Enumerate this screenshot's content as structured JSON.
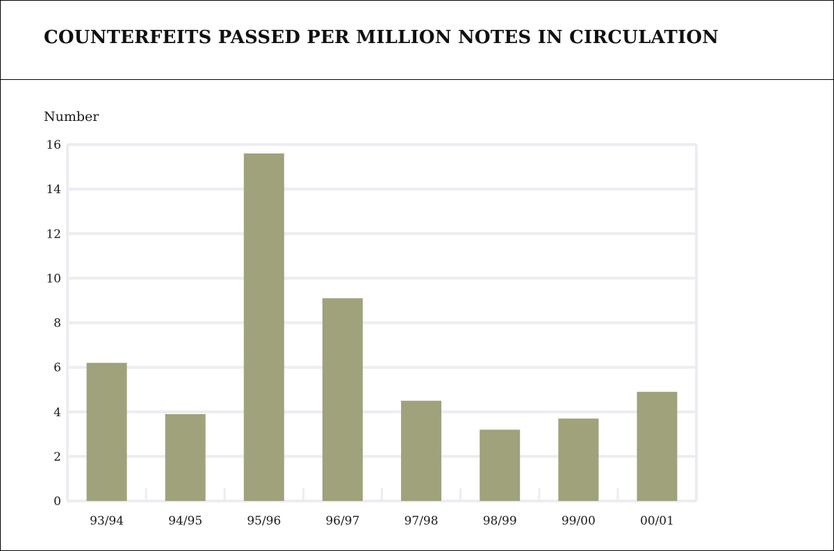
{
  "chart_data": {
    "type": "bar",
    "title": "COUNTERFEITS PASSED PER MILLION NOTES IN CIRCULATION",
    "ylabel": "Number",
    "xlabel": "",
    "categories": [
      "93/94",
      "94/95",
      "95/96",
      "96/97",
      "97/98",
      "98/99",
      "99/00",
      "00/01"
    ],
    "values": [
      6.2,
      3.9,
      15.6,
      9.1,
      4.5,
      3.2,
      3.7,
      4.9
    ],
    "ylim": [
      0,
      16
    ],
    "yticks": [
      0,
      2,
      4,
      6,
      8,
      10,
      12,
      14,
      16
    ],
    "grid": true,
    "legend": "none",
    "colors": {
      "bar": "#a0a27c",
      "grid": "#ececf2",
      "axis": "#ececf2"
    }
  }
}
